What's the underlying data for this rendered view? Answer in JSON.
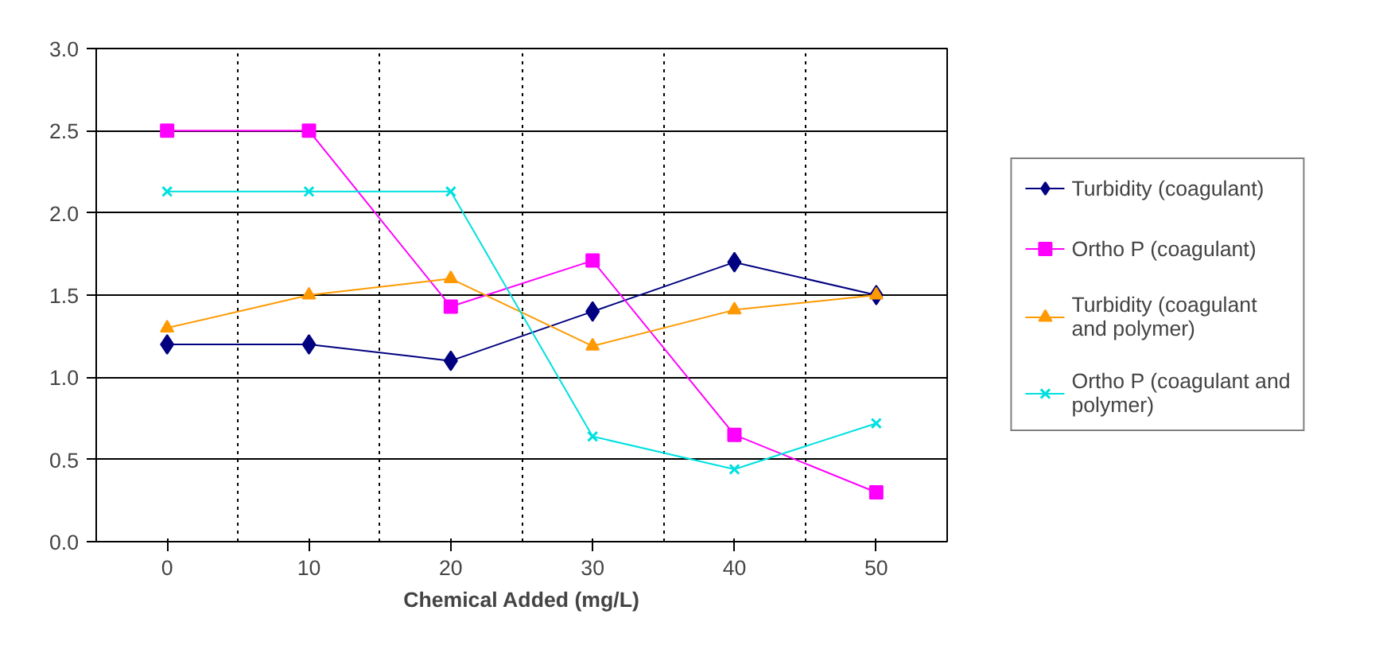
{
  "chart_data": {
    "type": "line",
    "xlabel": "Chemical Added (mg/L)",
    "categories": [
      "0",
      "10",
      "20",
      "30",
      "40",
      "50"
    ],
    "ylim": [
      0,
      3
    ],
    "yticks": [
      {
        "value": 0,
        "label": "0.0"
      },
      {
        "value": 0.5,
        "label": "0.5"
      },
      {
        "value": 1,
        "label": "1.0"
      },
      {
        "value": 1.5,
        "label": "1.5"
      },
      {
        "value": 2,
        "label": "2.0"
      },
      {
        "value": 2.5,
        "label": "2.5"
      },
      {
        "value": 3,
        "label": "3.0"
      }
    ],
    "grid": true,
    "legend": "right",
    "series": [
      {
        "name": "Turbidity (coagulant)",
        "color": "#000080",
        "marker": "diamond",
        "values": [
          1.2,
          1.2,
          1.1,
          1.4,
          1.7,
          1.5
        ]
      },
      {
        "name": "Ortho P (coagulant)",
        "color": "#ff00ff",
        "marker": "square",
        "values": [
          2.5,
          2.5,
          1.43,
          1.71,
          0.65,
          0.3
        ]
      },
      {
        "name": "Turbidity (coagulant and polymer)",
        "color": "#ff9900",
        "marker": "triangle",
        "values": [
          1.3,
          1.5,
          1.6,
          1.19,
          1.41,
          1.5
        ]
      },
      {
        "name": "Ortho P (coagulant and polymer)",
        "color": "#00e0e0",
        "marker": "cross",
        "values": [
          2.13,
          2.13,
          2.13,
          0.64,
          0.44,
          0.72
        ]
      }
    ]
  }
}
